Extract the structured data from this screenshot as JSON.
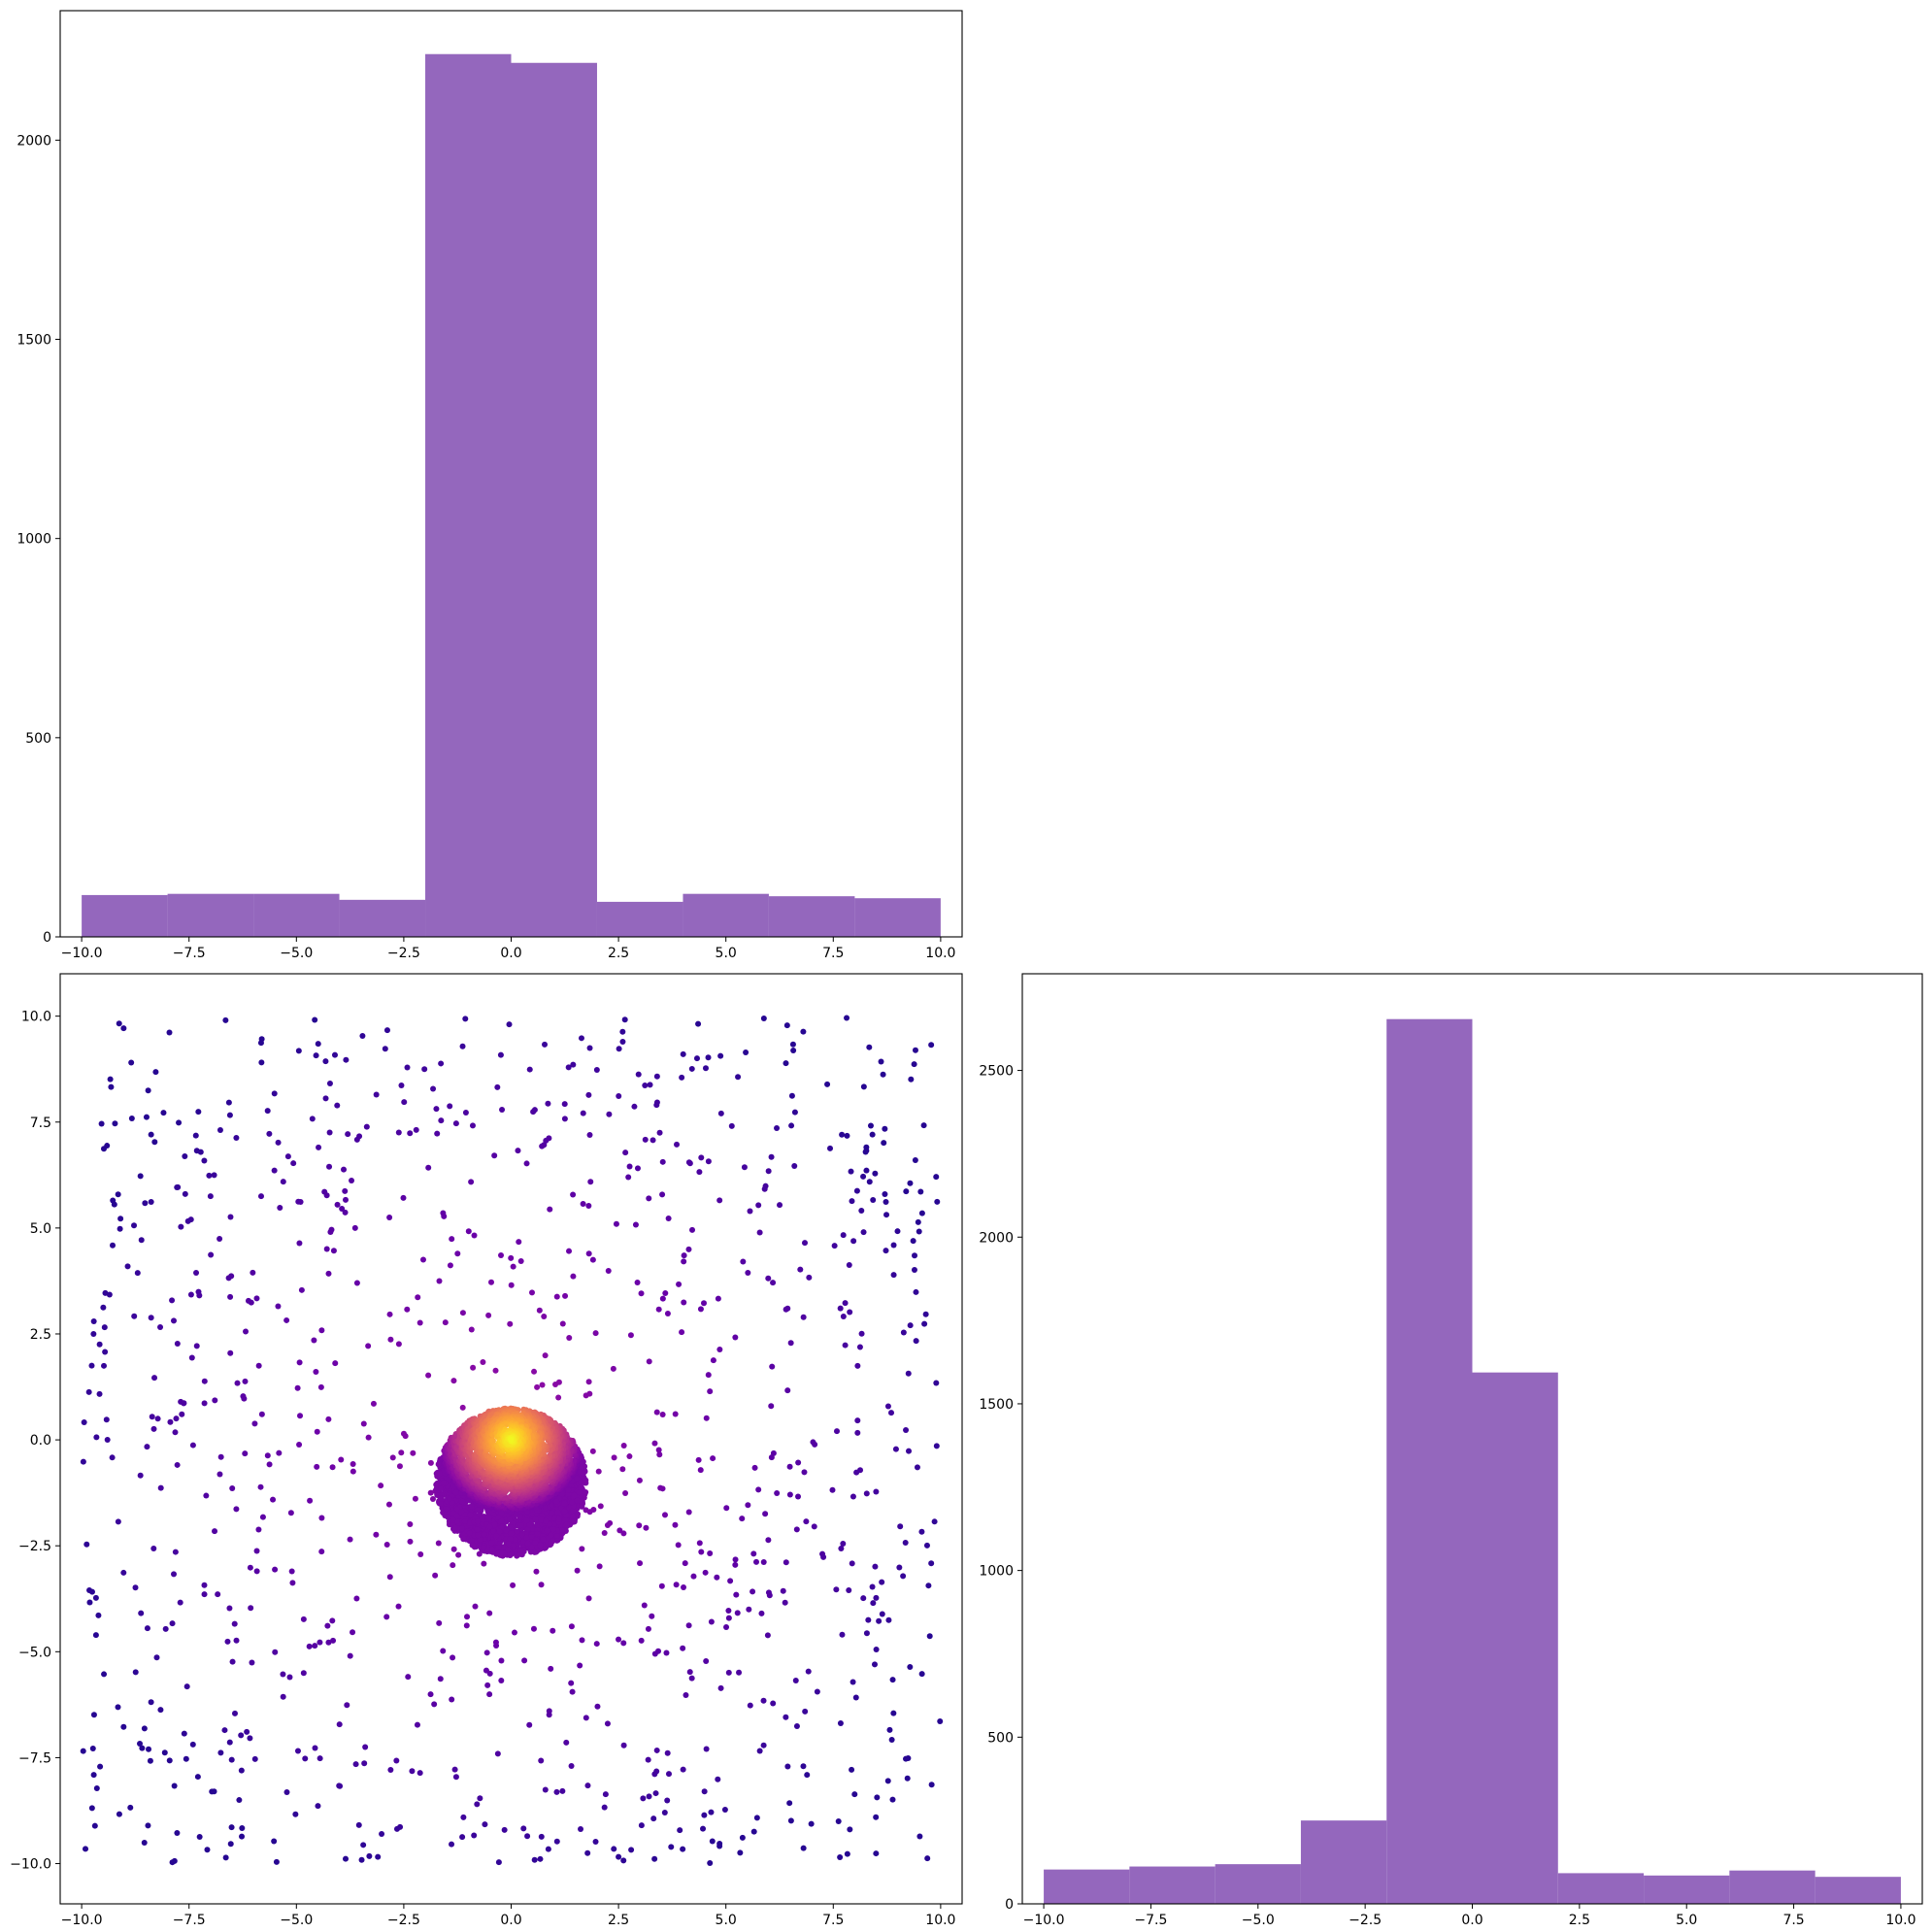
{
  "chart_data": [
    {
      "type": "bar",
      "panel": "top-left",
      "description": "histogram of x",
      "bin_edges": [
        -10,
        -8,
        -6,
        -4,
        -2,
        0,
        2,
        4,
        6,
        8,
        10
      ],
      "values": [
        105,
        108,
        108,
        93,
        2216,
        2194,
        88,
        108,
        102,
        97
      ],
      "color": "#9467bd",
      "xlim": [
        -10.5,
        10.5
      ],
      "ylim": [
        0,
        2325
      ],
      "xticks": [
        -10,
        -7.5,
        -5,
        -2.5,
        0,
        2.5,
        5,
        7.5,
        10
      ],
      "xtick_labels": [
        "−10.0",
        "−7.5",
        "−5.0",
        "−2.5",
        "0.0",
        "2.5",
        "5.0",
        "7.5",
        "10.0"
      ],
      "yticks": [
        0,
        500,
        1000,
        1500,
        2000
      ],
      "ytick_labels": [
        "0",
        "500",
        "1000",
        "1500",
        "2000"
      ],
      "title": "",
      "xlabel": "",
      "ylabel": "",
      "grid": false
    },
    {
      "type": "scatter",
      "panel": "bottom-left",
      "description": "x vs y scatter colored by density (plasma colormap)",
      "colormap": "plasma",
      "uniform_background": {
        "count": 1000,
        "x_range": [
          -10,
          10
        ],
        "y_range": [
          -10,
          10
        ],
        "color": "#3c049b"
      },
      "cluster": {
        "count": 4000,
        "center": [
          0,
          -1
        ],
        "radius": 1.75,
        "peak": [
          0,
          0
        ],
        "peak_color": "#f0f921"
      },
      "xlim": [
        -10.5,
        10.5
      ],
      "ylim": [
        -10.95,
        11.0
      ],
      "xticks": [
        -10,
        -7.5,
        -5,
        -2.5,
        0,
        2.5,
        5,
        7.5,
        10
      ],
      "xtick_labels": [
        "−10.0",
        "−7.5",
        "−5.0",
        "−2.5",
        "0.0",
        "2.5",
        "5.0",
        "7.5",
        "10.0"
      ],
      "yticks": [
        -10,
        -7.5,
        -5,
        -2.5,
        0,
        2.5,
        5,
        7.5,
        10
      ],
      "ytick_labels": [
        "−10.0",
        "−7.5",
        "−5.0",
        "−2.5",
        "0.0",
        "2.5",
        "5.0",
        "7.5",
        "10.0"
      ],
      "title": "",
      "xlabel": "",
      "ylabel": "",
      "grid": false
    },
    {
      "type": "bar",
      "panel": "bottom-right",
      "description": "histogram of y",
      "bin_edges": [
        -10,
        -8,
        -6,
        -4,
        -2,
        0,
        2,
        4,
        6,
        8,
        10
      ],
      "values": [
        103,
        112,
        119,
        250,
        2654,
        1594,
        92,
        85,
        100,
        81
      ],
      "color": "#9467bd",
      "xlim": [
        -10.5,
        10.5
      ],
      "ylim": [
        0,
        2790
      ],
      "xticks": [
        -10,
        -7.5,
        -5,
        -2.5,
        0,
        2.5,
        5,
        7.5,
        10
      ],
      "xtick_labels": [
        "−10.0",
        "−7.5",
        "−5.0",
        "−2.5",
        "0.0",
        "2.5",
        "5.0",
        "7.5",
        "10.0"
      ],
      "yticks": [
        0,
        500,
        1000,
        1500,
        2000,
        2500
      ],
      "ytick_labels": [
        "0",
        "500",
        "1000",
        "1500",
        "2000",
        "2500"
      ],
      "title": "",
      "xlabel": "",
      "ylabel": "",
      "grid": false
    }
  ]
}
